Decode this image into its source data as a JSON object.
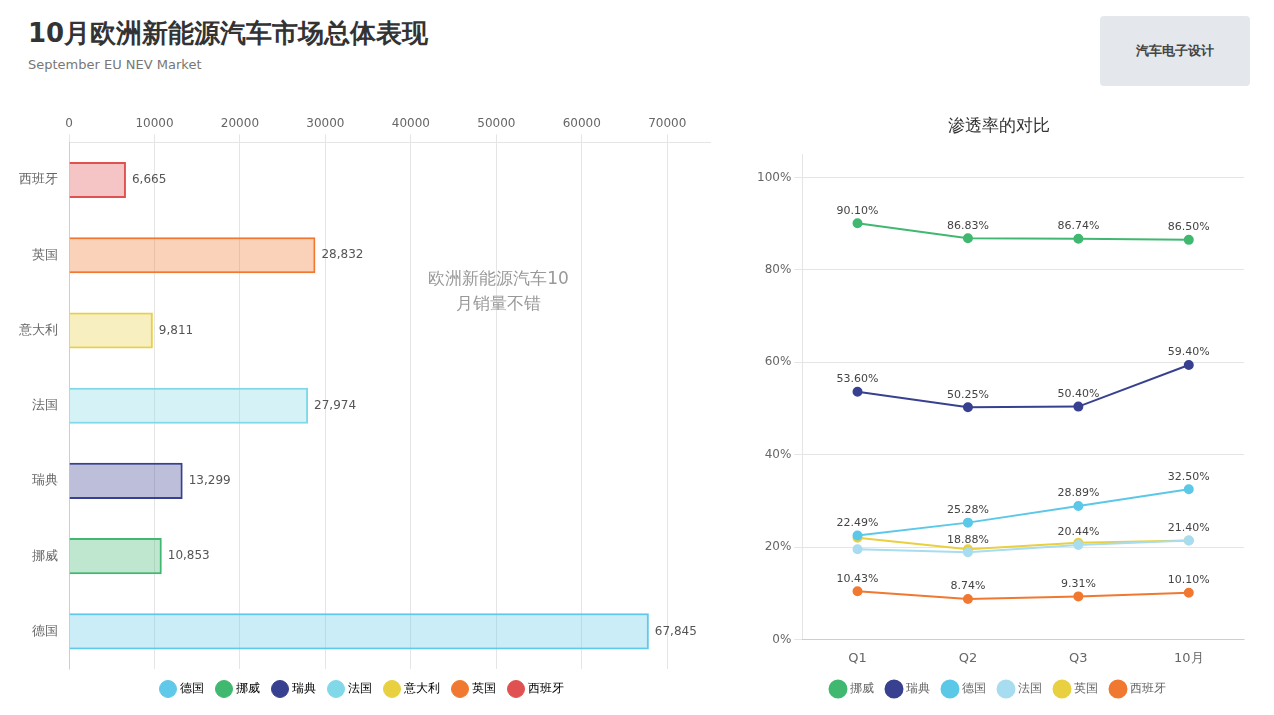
{
  "title": "10月欧洲新能源汽车市场总体表现",
  "subtitle": "September EU NEV Market",
  "annotations": [
    "汽车电子设计"
  ],
  "chart_data": [
    {
      "type": "bar",
      "orientation": "horizontal",
      "categories": [
        "德国",
        "挪威",
        "瑞典",
        "法国",
        "意大利",
        "英国",
        "西班牙"
      ],
      "values": [
        67845,
        10853,
        13299,
        27974,
        9811,
        28832,
        6665
      ],
      "value_labels": [
        "67,845",
        "10,853",
        "13,299",
        "27,974",
        "9,811",
        "28,832",
        "6,665"
      ],
      "colors": [
        "#60C8E8",
        "#40B870",
        "#384090",
        "#80D8E8",
        "#E8D040",
        "#F07830",
        "#E05252"
      ],
      "data_labels": true,
      "xlim": [
        0,
        75000
      ],
      "xticks": [
        0,
        10000,
        20000,
        30000,
        40000,
        50000,
        60000,
        70000
      ],
      "grid": true,
      "legend": "bottom",
      "annotations": [
        "欧洲新能源汽车10\n月销量不错"
      ]
    },
    {
      "type": "line",
      "title": "渗透率的对比",
      "categories": [
        "Q1",
        "Q2",
        "Q3",
        "10月"
      ],
      "series": [
        {
          "name": "挪威",
          "color": "#40B870",
          "values": [
            90.1,
            86.83,
            86.74,
            86.5
          ],
          "value_labels": [
            "90.10%",
            "86.83%",
            "86.74%",
            "86.50%"
          ]
        },
        {
          "name": "瑞典",
          "color": "#384090",
          "values": [
            53.6,
            50.25,
            50.4,
            59.4
          ],
          "value_labels": [
            "53.60%",
            "50.25%",
            "50.40%",
            "59.40%"
          ]
        },
        {
          "name": "德国",
          "color": "#5BC8E8",
          "values": [
            22.49,
            25.28,
            28.89,
            32.5
          ],
          "value_labels": [
            "22.49%",
            "25.28%",
            "28.89%",
            "32.50%"
          ]
        },
        {
          "name": "法国",
          "color": "#A8DCF0",
          "values": [
            19.5,
            18.88,
            20.44,
            21.4
          ],
          "value_labels": [
            null,
            "18.88%",
            "20.44%",
            "21.40%"
          ]
        },
        {
          "name": "英国",
          "color": "#E8D040",
          "values": [
            22.0,
            19.5,
            20.9,
            21.4
          ]
        },
        {
          "name": "西班牙",
          "color": "#F07830",
          "values": [
            10.43,
            8.74,
            9.31,
            10.1
          ],
          "value_labels": [
            "10.43%",
            "8.74%",
            "9.31%",
            "10.10%"
          ]
        }
      ],
      "ylim": [
        0,
        105
      ],
      "yticks": [
        {
          "value": 0,
          "label": "0%"
        },
        {
          "value": 20,
          "label": "20%"
        },
        {
          "value": 40,
          "label": "40%"
        },
        {
          "value": 60,
          "label": "60%"
        },
        {
          "value": 80,
          "label": "80%"
        },
        {
          "value": 100,
          "label": "100%"
        }
      ],
      "grid": true,
      "legend": "bottom",
      "marker": "circle",
      "data_labels": true
    }
  ]
}
